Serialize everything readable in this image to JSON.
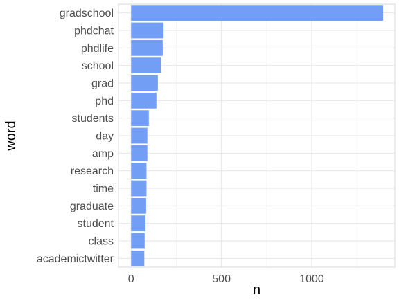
{
  "chart_data": {
    "type": "bar",
    "orientation": "horizontal",
    "categories": [
      "gradschool",
      "phdchat",
      "phdlife",
      "school",
      "grad",
      "phd",
      "students",
      "day",
      "amp",
      "research",
      "time",
      "graduate",
      "student",
      "class",
      "academictwitter"
    ],
    "values": [
      1395,
      180,
      175,
      165,
      148,
      140,
      98,
      90,
      90,
      85,
      85,
      83,
      80,
      75,
      73
    ],
    "xlabel": "n",
    "ylabel": "word",
    "xlim": [
      -70,
      1460
    ],
    "xticks": [
      0,
      500,
      1000
    ],
    "xtick_labels": [
      "0",
      "500",
      "1000"
    ],
    "grid": true,
    "legend": "none",
    "colors": {
      "bar": "#6f9cf6",
      "grid_major": "#e6e6e6",
      "grid_minor": "#f1f1f1",
      "panel_border": "#d9d9d9"
    }
  }
}
